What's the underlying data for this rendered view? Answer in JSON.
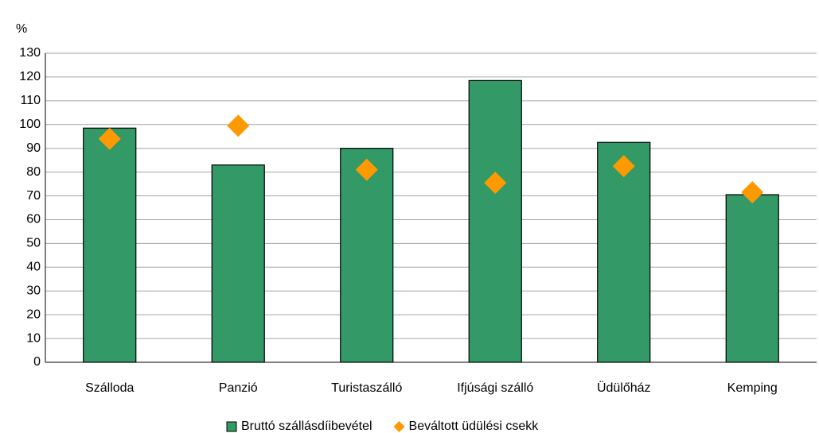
{
  "chart_data": {
    "type": "bar",
    "y_label": "%",
    "categories": [
      "Szálloda",
      "Panzió",
      "Turistaszálló",
      "Ifjúsági szálló",
      "Üdülőház",
      "Kemping"
    ],
    "series": [
      {
        "name": "Bruttó szállásdíibevétel",
        "color": "#339966",
        "marker": "bar",
        "values": [
          98.5,
          83,
          90,
          118.5,
          92.5,
          70.5
        ]
      },
      {
        "name": "Beváltott üdülési csekk",
        "color": "#ff9900",
        "marker": "diamond",
        "values": [
          94,
          99.5,
          81,
          75.5,
          82.5,
          71.5
        ]
      }
    ],
    "ylim": [
      0,
      130
    ],
    "yticks": [
      0,
      10,
      20,
      30,
      40,
      50,
      60,
      70,
      80,
      90,
      100,
      110,
      120,
      130
    ],
    "grid": true,
    "legend": "bottom"
  }
}
